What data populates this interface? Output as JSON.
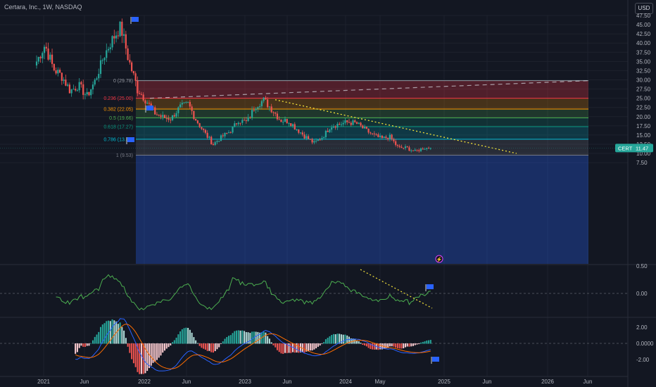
{
  "header": {
    "title": "Certara, Inc., 1W, NASDAQ",
    "currency": "USD"
  },
  "colors": {
    "up": "#26a69a",
    "down": "#ef5350",
    "flag": "#2962ff",
    "trend": "#f5e33a",
    "macd": "#2962ff",
    "signal": "#ff6d00",
    "osc": "#4caf50"
  },
  "chart_data": [
    {
      "type": "candlestick",
      "ticker": "CERT",
      "last_price": "11.47",
      "y_ticks": [
        "47.50",
        "45.00",
        "42.50",
        "40.00",
        "37.50",
        "35.00",
        "32.50",
        "30.00",
        "27.50",
        "25.00",
        "22.50",
        "20.00",
        "17.50",
        "15.00",
        "12.50",
        "10.00",
        "7.50"
      ],
      "x_labels": [
        "2021",
        "Jun",
        "2022",
        "Jun",
        "2023",
        "Jun",
        "2024",
        "May",
        "2025",
        "Jun",
        "2026",
        "Jun"
      ],
      "ohlc_anchors": [
        [
          "2021-01",
          35.0
        ],
        [
          "2021-02",
          39.5
        ],
        [
          "2021-03",
          33.0
        ],
        [
          "2021-04",
          31.0
        ],
        [
          "2021-05",
          27.0
        ],
        [
          "2021-06",
          28.5
        ],
        [
          "2021-07",
          25.5
        ],
        [
          "2021-08",
          30.0
        ],
        [
          "2021-09",
          36.5
        ],
        [
          "2021-10",
          41.0
        ],
        [
          "2021-11",
          44.5
        ],
        [
          "2021-12",
          35.0
        ],
        [
          "2022-01",
          27.5
        ],
        [
          "2022-02",
          24.5
        ],
        [
          "2022-03",
          21.0
        ],
        [
          "2022-04",
          19.8
        ],
        [
          "2022-05",
          19.5
        ],
        [
          "2022-06",
          22.5
        ],
        [
          "2022-07",
          23.5
        ],
        [
          "2022-08",
          19.0
        ],
        [
          "2022-09",
          15.5
        ],
        [
          "2022-10",
          12.5
        ],
        [
          "2022-11",
          14.5
        ],
        [
          "2022-12",
          16.0
        ],
        [
          "2023-01",
          19.0
        ],
        [
          "2023-02",
          18.5
        ],
        [
          "2023-03",
          23.0
        ],
        [
          "2023-04",
          24.5
        ],
        [
          "2023-05",
          22.0
        ],
        [
          "2023-06",
          19.0
        ],
        [
          "2023-07",
          18.8
        ],
        [
          "2023-08",
          16.5
        ],
        [
          "2023-09",
          14.5
        ],
        [
          "2023-10",
          12.8
        ],
        [
          "2023-11",
          14.5
        ],
        [
          "2023-12",
          17.5
        ],
        [
          "2024-01",
          18.0
        ],
        [
          "2024-02",
          18.5
        ],
        [
          "2024-03",
          18.2
        ],
        [
          "2024-04",
          16.5
        ],
        [
          "2024-05",
          15.0
        ],
        [
          "2024-06",
          14.0
        ],
        [
          "2024-07",
          14.5
        ],
        [
          "2024-08",
          11.5
        ],
        [
          "2024-09",
          11.5
        ],
        [
          "2024-10",
          10.5
        ],
        [
          "2024-11",
          11.47
        ]
      ],
      "fibonacci": [
        {
          "label": "0 (29.78)",
          "price": 29.78,
          "color": "#9598a1"
        },
        {
          "label": "0.236 (25.00)",
          "price": 25.0,
          "color": "#f23645"
        },
        {
          "label": "0.382 (22.05)",
          "price": 22.05,
          "color": "#ff9800"
        },
        {
          "label": "0.5 (19.66)",
          "price": 19.66,
          "color": "#4caf50"
        },
        {
          "label": "0.618 (17.27)",
          "price": 17.27,
          "color": "#089981"
        },
        {
          "label": "0.786 (13.87)",
          "price": 13.87,
          "color": "#00bcd4"
        },
        {
          "label": "1 (9.53)",
          "price": 9.53,
          "color": "#787b86"
        }
      ]
    },
    {
      "type": "line",
      "name": "oscillator",
      "y_ticks": [
        "0.50",
        "0.00"
      ]
    },
    {
      "type": "macd",
      "y_ticks": [
        "2.00",
        "0.0000",
        "-2.00"
      ]
    }
  ]
}
